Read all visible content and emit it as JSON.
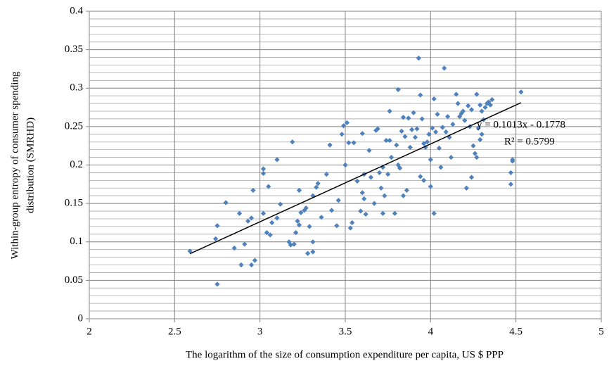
{
  "chart_data": {
    "type": "scatter",
    "xlabel": "The logarithm of the size of consumption expenditure per capita, US $ PPP",
    "ylabel": [
      "Within-group entropy of consumer spending",
      "distribution (SMRHD)"
    ],
    "xlim": [
      2,
      5
    ],
    "xticks": [
      2,
      2.5,
      3,
      3.5,
      4,
      4.5,
      5
    ],
    "ylim": [
      0,
      0.4
    ],
    "yticks": [
      0,
      0.05,
      0.1,
      0.15,
      0.2,
      0.25,
      0.3,
      0.35,
      0.4
    ],
    "y_minor_step": 0.01,
    "grid": true,
    "color": "#4f81bd",
    "trendline": {
      "slope": 0.1013,
      "intercept": -0.1778,
      "equation": "y = 0.1013x - 0.1778",
      "r_squared": "R² = 0.5799"
    },
    "x": [
      2.59,
      2.74,
      2.75,
      2.75,
      2.8,
      2.85,
      2.88,
      2.89,
      2.91,
      2.93,
      2.95,
      2.95,
      2.96,
      2.97,
      3.02,
      3.02,
      3.02,
      3.04,
      3.05,
      3.06,
      3.07,
      3.1,
      3.1,
      3.12,
      3.17,
      3.18,
      3.19,
      3.2,
      3.21,
      3.22,
      3.23,
      3.23,
      3.24,
      3.26,
      3.27,
      3.28,
      3.29,
      3.31,
      3.31,
      3.31,
      3.33,
      3.34,
      3.36,
      3.39,
      3.41,
      3.42,
      3.45,
      3.46,
      3.48,
      3.49,
      3.5,
      3.51,
      3.52,
      3.53,
      3.54,
      3.55,
      3.57,
      3.59,
      3.6,
      3.6,
      3.61,
      3.61,
      3.62,
      3.64,
      3.65,
      3.67,
      3.68,
      3.69,
      3.7,
      3.71,
      3.72,
      3.72,
      3.73,
      3.74,
      3.75,
      3.76,
      3.76,
      3.77,
      3.79,
      3.8,
      3.81,
      3.81,
      3.82,
      3.83,
      3.84,
      3.84,
      3.85,
      3.86,
      3.87,
      3.88,
      3.89,
      3.9,
      3.91,
      3.92,
      3.93,
      3.94,
      3.94,
      3.95,
      3.96,
      3.96,
      3.97,
      3.98,
      3.99,
      4.0,
      4.0,
      4.01,
      4.02,
      4.02,
      4.03,
      4.04,
      4.05,
      4.06,
      4.07,
      4.08,
      4.09,
      4.1,
      4.11,
      4.12,
      4.13,
      4.15,
      4.16,
      4.17,
      4.18,
      4.19,
      4.2,
      4.21,
      4.22,
      4.23,
      4.24,
      4.24,
      4.25,
      4.26,
      4.27,
      4.27,
      4.28,
      4.29,
      4.29,
      4.3,
      4.3,
      4.31,
      4.32,
      4.33,
      4.34,
      4.35,
      4.36,
      4.47,
      4.47,
      4.48,
      4.48,
      4.53
    ],
    "values": [
      0.088,
      0.104,
      0.121,
      0.045,
      0.151,
      0.092,
      0.137,
      0.07,
      0.097,
      0.127,
      0.07,
      0.131,
      0.167,
      0.076,
      0.137,
      0.189,
      0.195,
      0.112,
      0.172,
      0.109,
      0.125,
      0.207,
      0.131,
      0.149,
      0.1,
      0.096,
      0.23,
      0.097,
      0.112,
      0.127,
      0.122,
      0.167,
      0.138,
      0.141,
      0.144,
      0.085,
      0.12,
      0.087,
      0.1,
      0.16,
      0.171,
      0.176,
      0.132,
      0.188,
      0.226,
      0.141,
      0.121,
      0.154,
      0.24,
      0.251,
      0.2,
      0.255,
      0.229,
      0.118,
      0.125,
      0.229,
      0.179,
      0.14,
      0.241,
      0.164,
      0.156,
      0.188,
      0.136,
      0.219,
      0.184,
      0.15,
      0.245,
      0.247,
      0.19,
      0.17,
      0.137,
      0.197,
      0.16,
      0.232,
      0.188,
      0.232,
      0.27,
      0.21,
      0.137,
      0.226,
      0.298,
      0.2,
      0.196,
      0.244,
      0.262,
      0.16,
      0.237,
      0.167,
      0.261,
      0.223,
      0.246,
      0.268,
      0.236,
      0.247,
      0.339,
      0.291,
      0.185,
      0.26,
      0.228,
      0.18,
      0.223,
      0.23,
      0.24,
      0.207,
      0.172,
      0.248,
      0.137,
      0.286,
      0.243,
      0.266,
      0.222,
      0.197,
      0.249,
      0.326,
      0.243,
      0.263,
      0.236,
      0.21,
      0.253,
      0.292,
      0.28,
      0.263,
      0.267,
      0.27,
      0.258,
      0.17,
      0.277,
      0.25,
      0.184,
      0.272,
      0.225,
      0.215,
      0.21,
      0.292,
      0.248,
      0.233,
      0.278,
      0.24,
      0.27,
      0.259,
      0.275,
      0.28,
      0.282,
      0.278,
      0.285,
      0.19,
      0.175,
      0.205,
      0.207,
      0.295
    ]
  }
}
